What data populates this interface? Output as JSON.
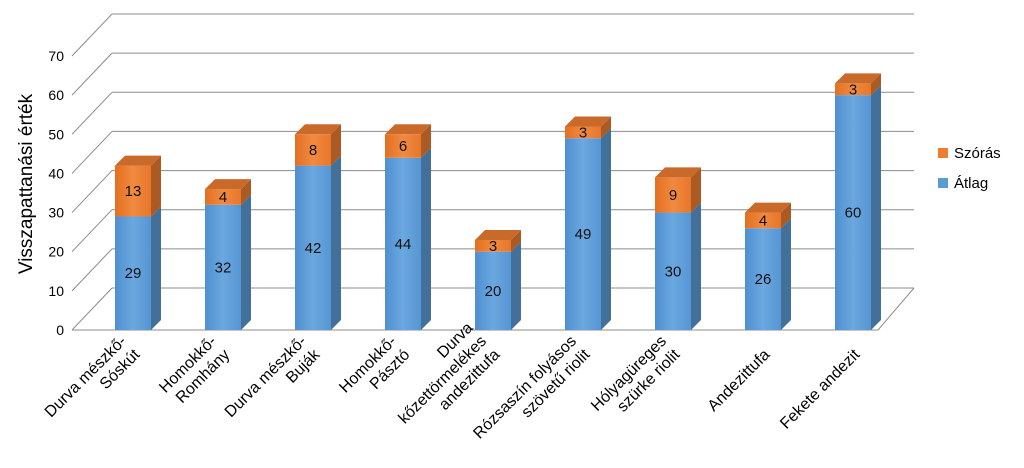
{
  "chart_data": {
    "type": "bar",
    "stacked": true,
    "three_d": true,
    "title": "",
    "xlabel": "",
    "ylabel": "Visszapattanási érték",
    "ylim": [
      0,
      70
    ],
    "yticks": [
      0,
      10,
      20,
      30,
      40,
      50,
      60,
      70
    ],
    "grid": true,
    "legend_position": "right",
    "categories": [
      [
        "Durva mészkő-",
        "Sóskút"
      ],
      [
        "Homokkő-",
        "Romhány"
      ],
      [
        "Durva mészkő-",
        "Buják"
      ],
      [
        "Homokkő-",
        "Pásztó"
      ],
      [
        "Durva",
        "kőzettörmelékes",
        "andezittufa"
      ],
      [
        "Rózsaszín folyásos",
        "szövetű riolit"
      ],
      [
        "Hólyagüreges",
        "szürke riolit"
      ],
      [
        "Andezittufa"
      ],
      [
        "Fekete andezit"
      ]
    ],
    "series": [
      {
        "name": "Átlag",
        "color": "#5B9BD5",
        "values": [
          29,
          32,
          42,
          44,
          20,
          49,
          30,
          26,
          60
        ]
      },
      {
        "name": "Szórás",
        "color": "#ED7D31",
        "values": [
          13,
          4,
          8,
          6,
          3,
          3,
          9,
          4,
          3
        ]
      }
    ]
  }
}
